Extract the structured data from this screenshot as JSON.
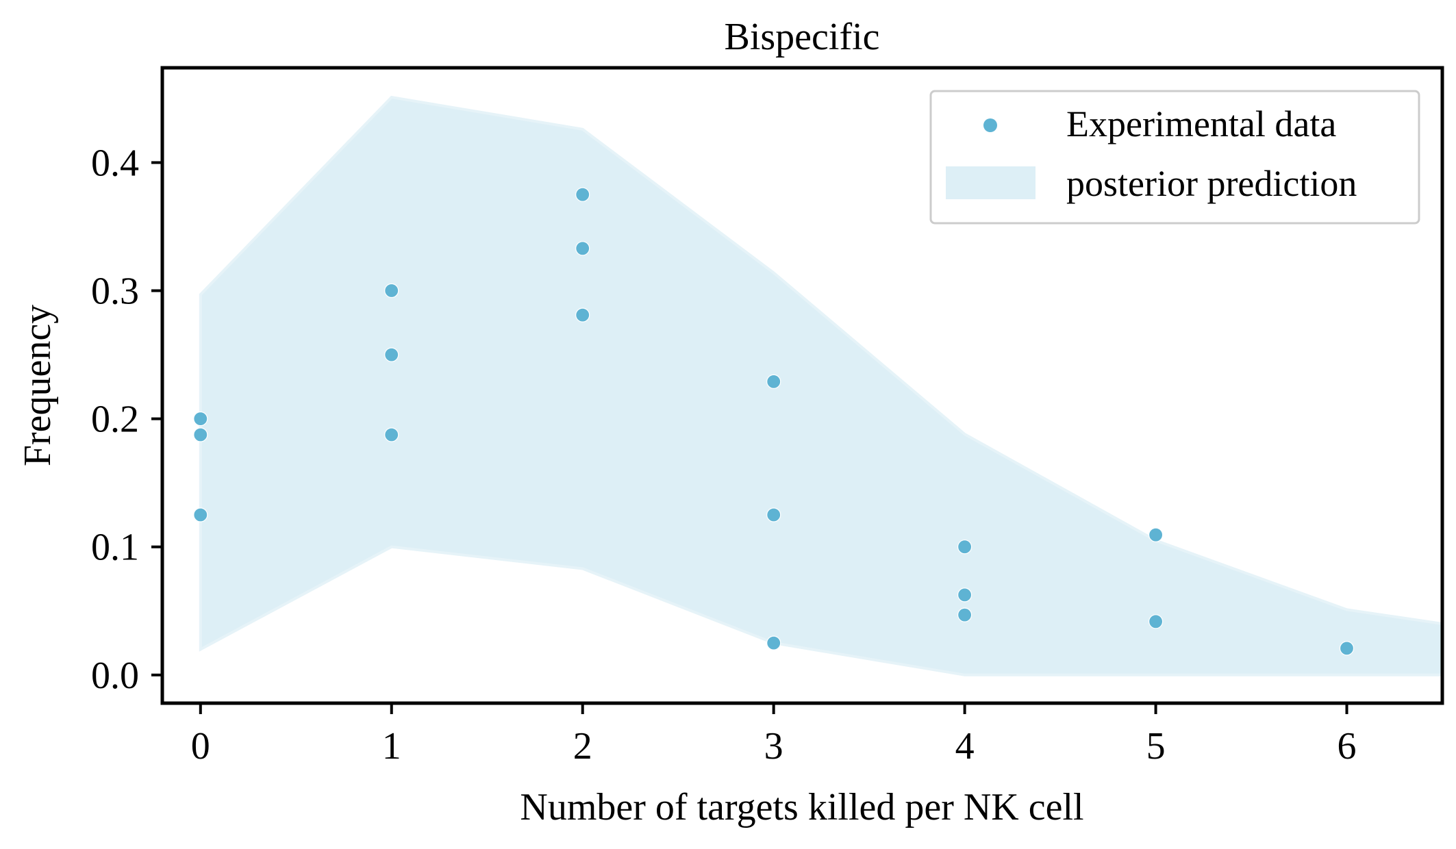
{
  "colors": {
    "point": "#5eb3d3",
    "band": "#ddeff6",
    "axes": "#000000",
    "background": "#ffffff",
    "legend_border": "#cccccc"
  },
  "chart_data": {
    "type": "scatter",
    "title": "Bispecific",
    "xlabel": "Number of targets killed per NK cell",
    "ylabel": "Frequency",
    "xlim": [
      -0.2,
      6.5
    ],
    "ylim": [
      -0.022,
      0.474
    ],
    "x_ticks": [
      0,
      1,
      2,
      3,
      4,
      5,
      6
    ],
    "x_tick_labels": [
      "0",
      "1",
      "2",
      "3",
      "4",
      "5",
      "6"
    ],
    "y_ticks": [
      0.0,
      0.1,
      0.2,
      0.3,
      0.4
    ],
    "y_tick_labels": [
      "0.0",
      "0.1",
      "0.2",
      "0.3",
      "0.4"
    ],
    "grid": false,
    "legend": {
      "placement": "top-right",
      "entries": [
        "Experimental data",
        "posterior prediction"
      ]
    },
    "series": [
      {
        "name": "Experimental data",
        "kind": "scatter",
        "points": [
          {
            "x": 0,
            "y": 0.2
          },
          {
            "x": 0,
            "y": 0.1875
          },
          {
            "x": 0,
            "y": 0.125
          },
          {
            "x": 1,
            "y": 0.3
          },
          {
            "x": 1,
            "y": 0.25
          },
          {
            "x": 1,
            "y": 0.1875
          },
          {
            "x": 2,
            "y": 0.375
          },
          {
            "x": 2,
            "y": 0.333
          },
          {
            "x": 2,
            "y": 0.281
          },
          {
            "x": 3,
            "y": 0.229
          },
          {
            "x": 3,
            "y": 0.125
          },
          {
            "x": 3,
            "y": 0.025
          },
          {
            "x": 4,
            "y": 0.1
          },
          {
            "x": 4,
            "y": 0.0625
          },
          {
            "x": 4,
            "y": 0.0469
          },
          {
            "x": 5,
            "y": 0.1094
          },
          {
            "x": 5,
            "y": 0.0417
          },
          {
            "x": 6,
            "y": 0.0208
          }
        ]
      },
      {
        "name": "posterior prediction",
        "kind": "band",
        "x": [
          0,
          1,
          2,
          3,
          4,
          5,
          6,
          6.5
        ],
        "lower": [
          0.02,
          0.1,
          0.083,
          0.025,
          0.0,
          0.0,
          0.0,
          0.0
        ],
        "upper": [
          0.297,
          0.451,
          0.426,
          0.314,
          0.188,
          0.105,
          0.051,
          0.04
        ]
      }
    ]
  }
}
